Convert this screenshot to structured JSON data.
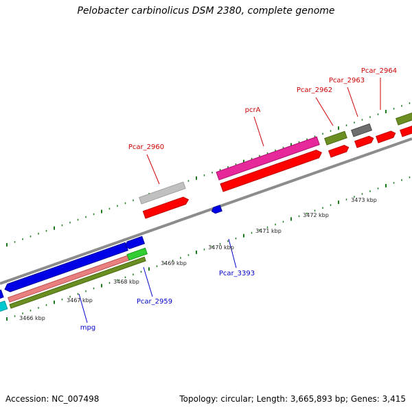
{
  "title": "Pelobacter carbinolicus DSM 2380, complete genome",
  "footer": {
    "accession": "Accession: NC_007498",
    "summary": "Topology: circular; Length: 3,665,893 bp; Genes: 3,415"
  },
  "scale_labels": [
    "3466 kbp",
    "3467 kbp",
    "3468 kbp",
    "3469 kbp",
    "3470 kbp",
    "3471 kbp",
    "3472 kbp",
    "3473 kbp"
  ],
  "gene_labels": {
    "pcar_2960": "Pcar_2960",
    "pcra": "pcrA",
    "pcar_2962": "Pcar_2962",
    "pcar_2963": "Pcar_2963",
    "pcar_2964": "Pcar_2964",
    "pcar_3393": "Pcar_3393",
    "pcar_2959": "Pcar_2959",
    "mpg": "mpg"
  },
  "colors": {
    "backbone": "#8c8c8c",
    "tick": "#1e7a1e",
    "label_red": "#cc0000",
    "label_blue": "#0000cc",
    "feature_red": "#ff0000",
    "feature_blue": "#0000e6",
    "feature_magenta": "#e6289a",
    "feature_grey": "#c0c0c0",
    "feature_darkgrey": "#6e6e6e",
    "feature_olive": "#6b8e23",
    "feature_salmon": "#e88080",
    "feature_green": "#32cd32",
    "feature_cyan": "#00c8d0"
  }
}
